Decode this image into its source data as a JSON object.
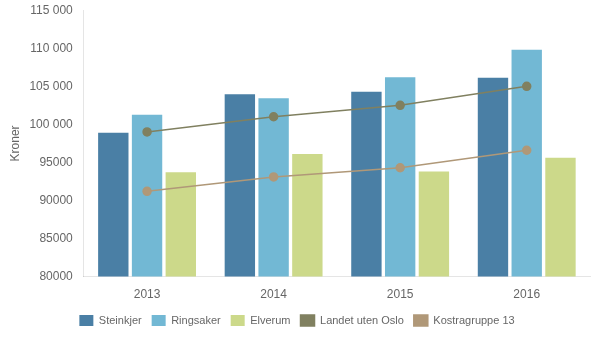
{
  "chart_data": {
    "type": "bar",
    "categories": [
      "2013",
      "2014",
      "2015",
      "2016"
    ],
    "series": [
      {
        "name": "Steinkjer",
        "type": "bar",
        "color": "#4a7fa5",
        "values": [
          98890,
          103941,
          104293,
          106127
        ]
      },
      {
        "name": "Ringsaker",
        "type": "bar",
        "color": "#72b8d4",
        "values": [
          101248,
          103433,
          106189,
          109800
        ]
      },
      {
        "name": "Elverum",
        "type": "bar",
        "color": "#ccd98a",
        "values": [
          93700,
          96100,
          93800,
          95600
        ]
      },
      {
        "name": "Landet uten Oslo",
        "type": "line",
        "color": "#808060",
        "marker": "circle",
        "line_style": "solid",
        "values": [
          99000,
          101000,
          102500,
          105000
        ]
      },
      {
        "name": "Kostragruppe 13",
        "type": "line",
        "color": "#b09878",
        "marker": "circle",
        "line_style": "solid",
        "values": [
          91200,
          93100,
          94300,
          96600
        ]
      }
    ],
    "y_label": "Kroner",
    "ylim": [
      80000,
      115000
    ],
    "yticks": [
      80000,
      85000,
      90000,
      95000,
      {
        "value": 100000,
        "label": "100 000"
      },
      {
        "value": 105000,
        "label": "105 000"
      },
      {
        "value": 110000,
        "label": "110 000"
      },
      {
        "value": 115000,
        "label": "115 000"
      }
    ],
    "grid": false,
    "legend": "bottom"
  }
}
